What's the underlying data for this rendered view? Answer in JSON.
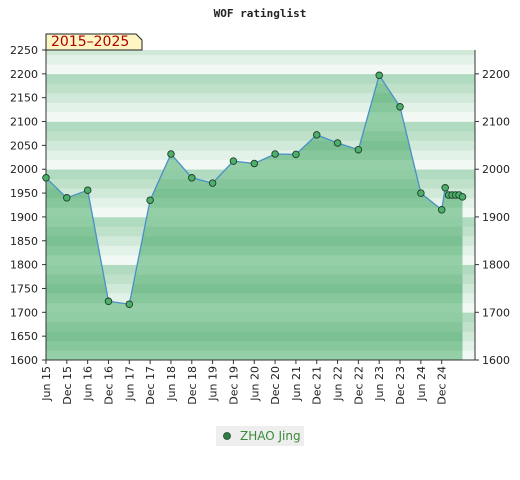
{
  "chart_data": {
    "type": "area",
    "title": "WOF ratinglist",
    "badge": "2015–2025",
    "xlabel": "",
    "ylabel": "",
    "ylim": [
      1600,
      2250
    ],
    "yticks_left": [
      1600,
      1650,
      1700,
      1750,
      1800,
      1850,
      1900,
      1950,
      2000,
      2050,
      2100,
      2150,
      2200,
      2250
    ],
    "yticks_right": [
      1600,
      1700,
      1800,
      1900,
      2000,
      2100,
      2200
    ],
    "xrange": [
      0,
      20.6
    ],
    "categories": [
      "Jun 15",
      "Dec 15",
      "Jun 16",
      "Dec 16",
      "Jun 17",
      "Dec 17",
      "Jun 18",
      "Dec 18",
      "Jun 19",
      "Dec 19",
      "Jun 20",
      "Dec 20",
      "Jun 21",
      "Dec 21",
      "Jun 22",
      "Dec 22",
      "Jun 23",
      "Dec 23",
      "Jun 24",
      "Dec 24"
    ],
    "grid": true,
    "legend": "bottom",
    "colors": {
      "line": "#4a90c8",
      "point": "#2e7d46",
      "area_dark": "#7cc495",
      "area_light": "#e6f4ea"
    },
    "series": [
      {
        "name": "ZHAO Jing",
        "points": [
          {
            "x": 0,
            "y": 1982
          },
          {
            "x": 1,
            "y": 1940
          },
          {
            "x": 2,
            "y": 1956
          },
          {
            "x": 3,
            "y": 1723
          },
          {
            "x": 4,
            "y": 1717
          },
          {
            "x": 5,
            "y": 1935
          },
          {
            "x": 6,
            "y": 2032
          },
          {
            "x": 7,
            "y": 1982
          },
          {
            "x": 8,
            "y": 1971
          },
          {
            "x": 9,
            "y": 2017
          },
          {
            "x": 10,
            "y": 2012
          },
          {
            "x": 11,
            "y": 2032
          },
          {
            "x": 12,
            "y": 2031
          },
          {
            "x": 13,
            "y": 2072
          },
          {
            "x": 14,
            "y": 2055
          },
          {
            "x": 15,
            "y": 2041
          },
          {
            "x": 16,
            "y": 2197
          },
          {
            "x": 17,
            "y": 2131
          },
          {
            "x": 18,
            "y": 1950
          },
          {
            "x": 19,
            "y": 1915
          },
          {
            "x": 19.17,
            "y": 1961
          },
          {
            "x": 19.33,
            "y": 1946
          },
          {
            "x": 19.5,
            "y": 1946
          },
          {
            "x": 19.67,
            "y": 1946
          },
          {
            "x": 19.83,
            "y": 1946
          },
          {
            "x": 20,
            "y": 1942
          }
        ]
      }
    ]
  }
}
